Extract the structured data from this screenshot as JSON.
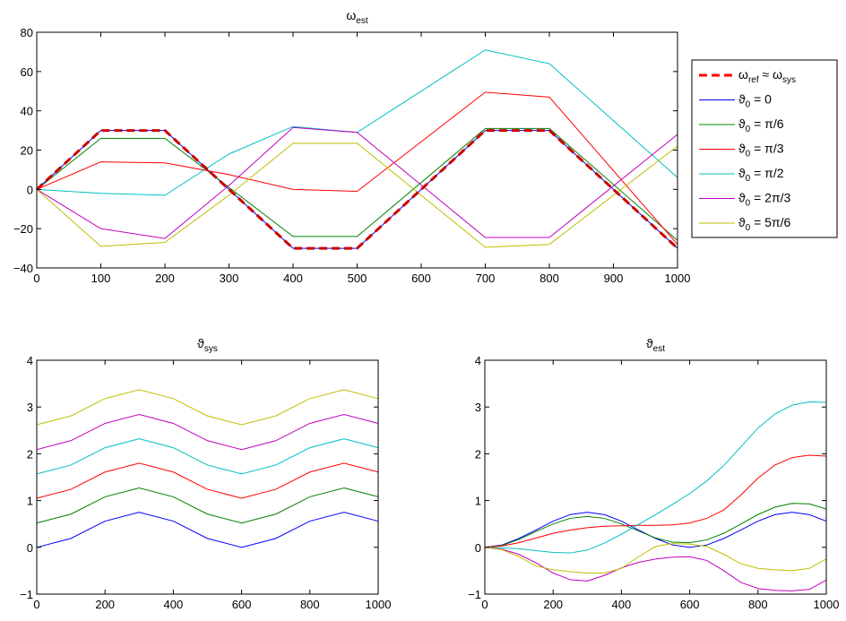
{
  "chart_data": [
    {
      "type": "line",
      "title": "ω",
      "title_sub": "est",
      "xlim": [
        0,
        1000
      ],
      "ylim": [
        -40,
        80
      ],
      "xticks": [
        0,
        100,
        200,
        300,
        400,
        500,
        600,
        700,
        800,
        900,
        1000
      ],
      "yticks": [
        -40,
        -20,
        0,
        20,
        40,
        60,
        80
      ],
      "grid": false,
      "legend_position": "outside-right",
      "legend": [
        {
          "parts": [
            [
              "ω",
              ""
            ],
            [
              "ref",
              "sub"
            ],
            [
              " ≈ ω",
              ""
            ],
            [
              "sys",
              "sub"
            ]
          ],
          "color": "#ff0000",
          "dashed": true
        },
        {
          "parts": [
            [
              "ϑ",
              ""
            ],
            [
              "0",
              "sub"
            ],
            [
              " = 0",
              ""
            ]
          ],
          "color": "#0000ff"
        },
        {
          "parts": [
            [
              "ϑ",
              ""
            ],
            [
              "0",
              "sub"
            ],
            [
              " = π/6",
              ""
            ]
          ],
          "color": "#008000"
        },
        {
          "parts": [
            [
              "ϑ",
              ""
            ],
            [
              "0",
              "sub"
            ],
            [
              " = π/3",
              ""
            ]
          ],
          "color": "#ff0000"
        },
        {
          "parts": [
            [
              "ϑ",
              ""
            ],
            [
              "0",
              "sub"
            ],
            [
              " = π/2",
              ""
            ]
          ],
          "color": "#00bfbf"
        },
        {
          "parts": [
            [
              "ϑ",
              ""
            ],
            [
              "0",
              "sub"
            ],
            [
              " = 2π/3",
              ""
            ]
          ],
          "color": "#bf00bf"
        },
        {
          "parts": [
            [
              "ϑ",
              ""
            ],
            [
              "0",
              "sub"
            ],
            [
              " = 5π/6",
              ""
            ]
          ],
          "color": "#bfbf00"
        }
      ],
      "series": [
        {
          "color": "#0000ff",
          "x": [
            0,
            100,
            200,
            400,
            500,
            700,
            800,
            1000
          ],
          "y": [
            0,
            30,
            30,
            -30,
            -30,
            30,
            30,
            -30
          ]
        },
        {
          "color": "#008000",
          "x": [
            0,
            100,
            200,
            400,
            500,
            700,
            800,
            1000
          ],
          "y": [
            0,
            26,
            26,
            -24,
            -24,
            31,
            31,
            -26
          ]
        },
        {
          "color": "#ff0000",
          "x": [
            0,
            100,
            200,
            300,
            400,
            500,
            700,
            800,
            1000
          ],
          "y": [
            0,
            14,
            13.5,
            7.5,
            0,
            -1,
            49.5,
            47,
            -28
          ]
        },
        {
          "color": "#00bfbf",
          "x": [
            0,
            100,
            200,
            300,
            400,
            500,
            700,
            800,
            1000
          ],
          "y": [
            0,
            -2,
            -3,
            18,
            32,
            29,
            71,
            64,
            6
          ]
        },
        {
          "color": "#bf00bf",
          "x": [
            0,
            100,
            200,
            300,
            400,
            500,
            700,
            800,
            1000
          ],
          "y": [
            0,
            -20,
            -25,
            2,
            31.5,
            29,
            -24.5,
            -24.5,
            28
          ]
        },
        {
          "color": "#bfbf00",
          "x": [
            0,
            100,
            200,
            300,
            400,
            500,
            700,
            800,
            1000
          ],
          "y": [
            0,
            -29,
            -27,
            -3,
            23.5,
            23.5,
            -29.5,
            -28,
            22
          ]
        },
        {
          "color": "#cc0000",
          "dashed": true,
          "x": [
            0,
            100,
            200,
            400,
            500,
            700,
            800,
            1000
          ],
          "y": [
            0,
            30,
            30,
            -30,
            -30,
            30,
            30,
            -30
          ]
        }
      ]
    },
    {
      "type": "line",
      "title": "ϑ",
      "title_sub": "sys",
      "xlim": [
        0,
        1000
      ],
      "ylim": [
        -1,
        4
      ],
      "xticks": [
        0,
        200,
        400,
        600,
        800,
        1000
      ],
      "yticks": [
        -1,
        0,
        1,
        2,
        3,
        4
      ],
      "grid": false,
      "series": [
        {
          "color": "#0000ff",
          "x": [
            0,
            100,
            200,
            300,
            400,
            500,
            600,
            700,
            800,
            900,
            1000
          ],
          "y": [
            0,
            0.19,
            0.56,
            0.75,
            0.56,
            0.19,
            0,
            0.19,
            0.56,
            0.75,
            0.56
          ]
        },
        {
          "color": "#008000",
          "x": [
            0,
            100,
            200,
            300,
            400,
            500,
            600,
            700,
            800,
            900,
            1000
          ],
          "y": [
            0.52,
            0.71,
            1.08,
            1.27,
            1.08,
            0.71,
            0.52,
            0.71,
            1.08,
            1.27,
            1.08
          ]
        },
        {
          "color": "#ff0000",
          "x": [
            0,
            100,
            200,
            300,
            400,
            500,
            600,
            700,
            800,
            900,
            1000
          ],
          "y": [
            1.05,
            1.24,
            1.61,
            1.8,
            1.61,
            1.24,
            1.05,
            1.24,
            1.61,
            1.8,
            1.61
          ]
        },
        {
          "color": "#00bfbf",
          "x": [
            0,
            100,
            200,
            300,
            400,
            500,
            600,
            700,
            800,
            900,
            1000
          ],
          "y": [
            1.57,
            1.76,
            2.13,
            2.32,
            2.13,
            1.76,
            1.57,
            1.76,
            2.13,
            2.32,
            2.13
          ]
        },
        {
          "color": "#bf00bf",
          "x": [
            0,
            100,
            200,
            300,
            400,
            500,
            600,
            700,
            800,
            900,
            1000
          ],
          "y": [
            2.09,
            2.28,
            2.65,
            2.84,
            2.65,
            2.28,
            2.09,
            2.28,
            2.65,
            2.84,
            2.65
          ]
        },
        {
          "color": "#bfbf00",
          "x": [
            0,
            100,
            200,
            300,
            400,
            500,
            600,
            700,
            800,
            900,
            1000
          ],
          "y": [
            2.62,
            2.81,
            3.18,
            3.37,
            3.18,
            2.81,
            2.62,
            2.81,
            3.18,
            3.37,
            3.18
          ]
        }
      ]
    },
    {
      "type": "line",
      "title": "ϑ",
      "title_sub": "est",
      "xlim": [
        0,
        1000
      ],
      "ylim": [
        -1,
        4
      ],
      "xticks": [
        0,
        200,
        400,
        600,
        800,
        1000
      ],
      "yticks": [
        -1,
        0,
        1,
        2,
        3,
        4
      ],
      "grid": false,
      "series": [
        {
          "color": "#0000ff",
          "x": [
            0,
            50,
            100,
            150,
            200,
            250,
            300,
            350,
            400,
            450,
            500,
            550,
            600,
            650,
            700,
            750,
            800,
            850,
            900,
            950,
            1000
          ],
          "y": [
            0,
            0.05,
            0.19,
            0.37,
            0.56,
            0.7,
            0.75,
            0.7,
            0.56,
            0.37,
            0.19,
            0.05,
            0,
            0.05,
            0.19,
            0.37,
            0.56,
            0.7,
            0.75,
            0.7,
            0.56
          ]
        },
        {
          "color": "#008000",
          "x": [
            0,
            50,
            100,
            150,
            200,
            250,
            300,
            350,
            400,
            450,
            500,
            550,
            600,
            650,
            700,
            750,
            800,
            850,
            900,
            950,
            1000
          ],
          "y": [
            0,
            0.04,
            0.17,
            0.34,
            0.5,
            0.62,
            0.66,
            0.62,
            0.5,
            0.35,
            0.2,
            0.11,
            0.1,
            0.16,
            0.3,
            0.5,
            0.7,
            0.86,
            0.94,
            0.93,
            0.82
          ]
        },
        {
          "color": "#ff0000",
          "x": [
            0,
            50,
            100,
            150,
            200,
            250,
            300,
            350,
            400,
            450,
            500,
            550,
            600,
            650,
            700,
            750,
            800,
            850,
            900,
            950,
            1000
          ],
          "y": [
            0,
            0.03,
            0.1,
            0.2,
            0.3,
            0.37,
            0.42,
            0.45,
            0.46,
            0.47,
            0.47,
            0.48,
            0.52,
            0.62,
            0.8,
            1.12,
            1.48,
            1.76,
            1.92,
            1.97,
            1.95
          ]
        },
        {
          "color": "#00bfbf",
          "x": [
            0,
            50,
            100,
            150,
            200,
            250,
            300,
            350,
            400,
            450,
            500,
            550,
            600,
            650,
            700,
            750,
            800,
            850,
            900,
            950,
            1000
          ],
          "y": [
            0,
            -0.01,
            -0.03,
            -0.07,
            -0.11,
            -0.12,
            -0.06,
            0.09,
            0.28,
            0.49,
            0.7,
            0.92,
            1.15,
            1.42,
            1.75,
            2.15,
            2.55,
            2.85,
            3.04,
            3.11,
            3.1
          ]
        },
        {
          "color": "#bf00bf",
          "x": [
            0,
            50,
            100,
            150,
            200,
            250,
            300,
            350,
            400,
            450,
            500,
            550,
            600,
            650,
            700,
            750,
            800,
            850,
            900,
            950,
            1000
          ],
          "y": [
            0,
            -0.04,
            -0.15,
            -0.33,
            -0.55,
            -0.69,
            -0.72,
            -0.6,
            -0.44,
            -0.32,
            -0.25,
            -0.21,
            -0.2,
            -0.28,
            -0.5,
            -0.75,
            -0.88,
            -0.92,
            -0.93,
            -0.9,
            -0.7
          ]
        },
        {
          "color": "#bfbf00",
          "x": [
            0,
            50,
            100,
            150,
            200,
            250,
            300,
            350,
            400,
            450,
            500,
            550,
            600,
            650,
            700,
            750,
            800,
            850,
            900,
            950,
            1000
          ],
          "y": [
            0,
            -0.05,
            -0.2,
            -0.4,
            -0.48,
            -0.52,
            -0.55,
            -0.55,
            -0.45,
            -0.2,
            0.02,
            0.08,
            0.07,
            0.02,
            -0.15,
            -0.35,
            -0.45,
            -0.48,
            -0.5,
            -0.45,
            -0.25
          ]
        }
      ]
    }
  ]
}
